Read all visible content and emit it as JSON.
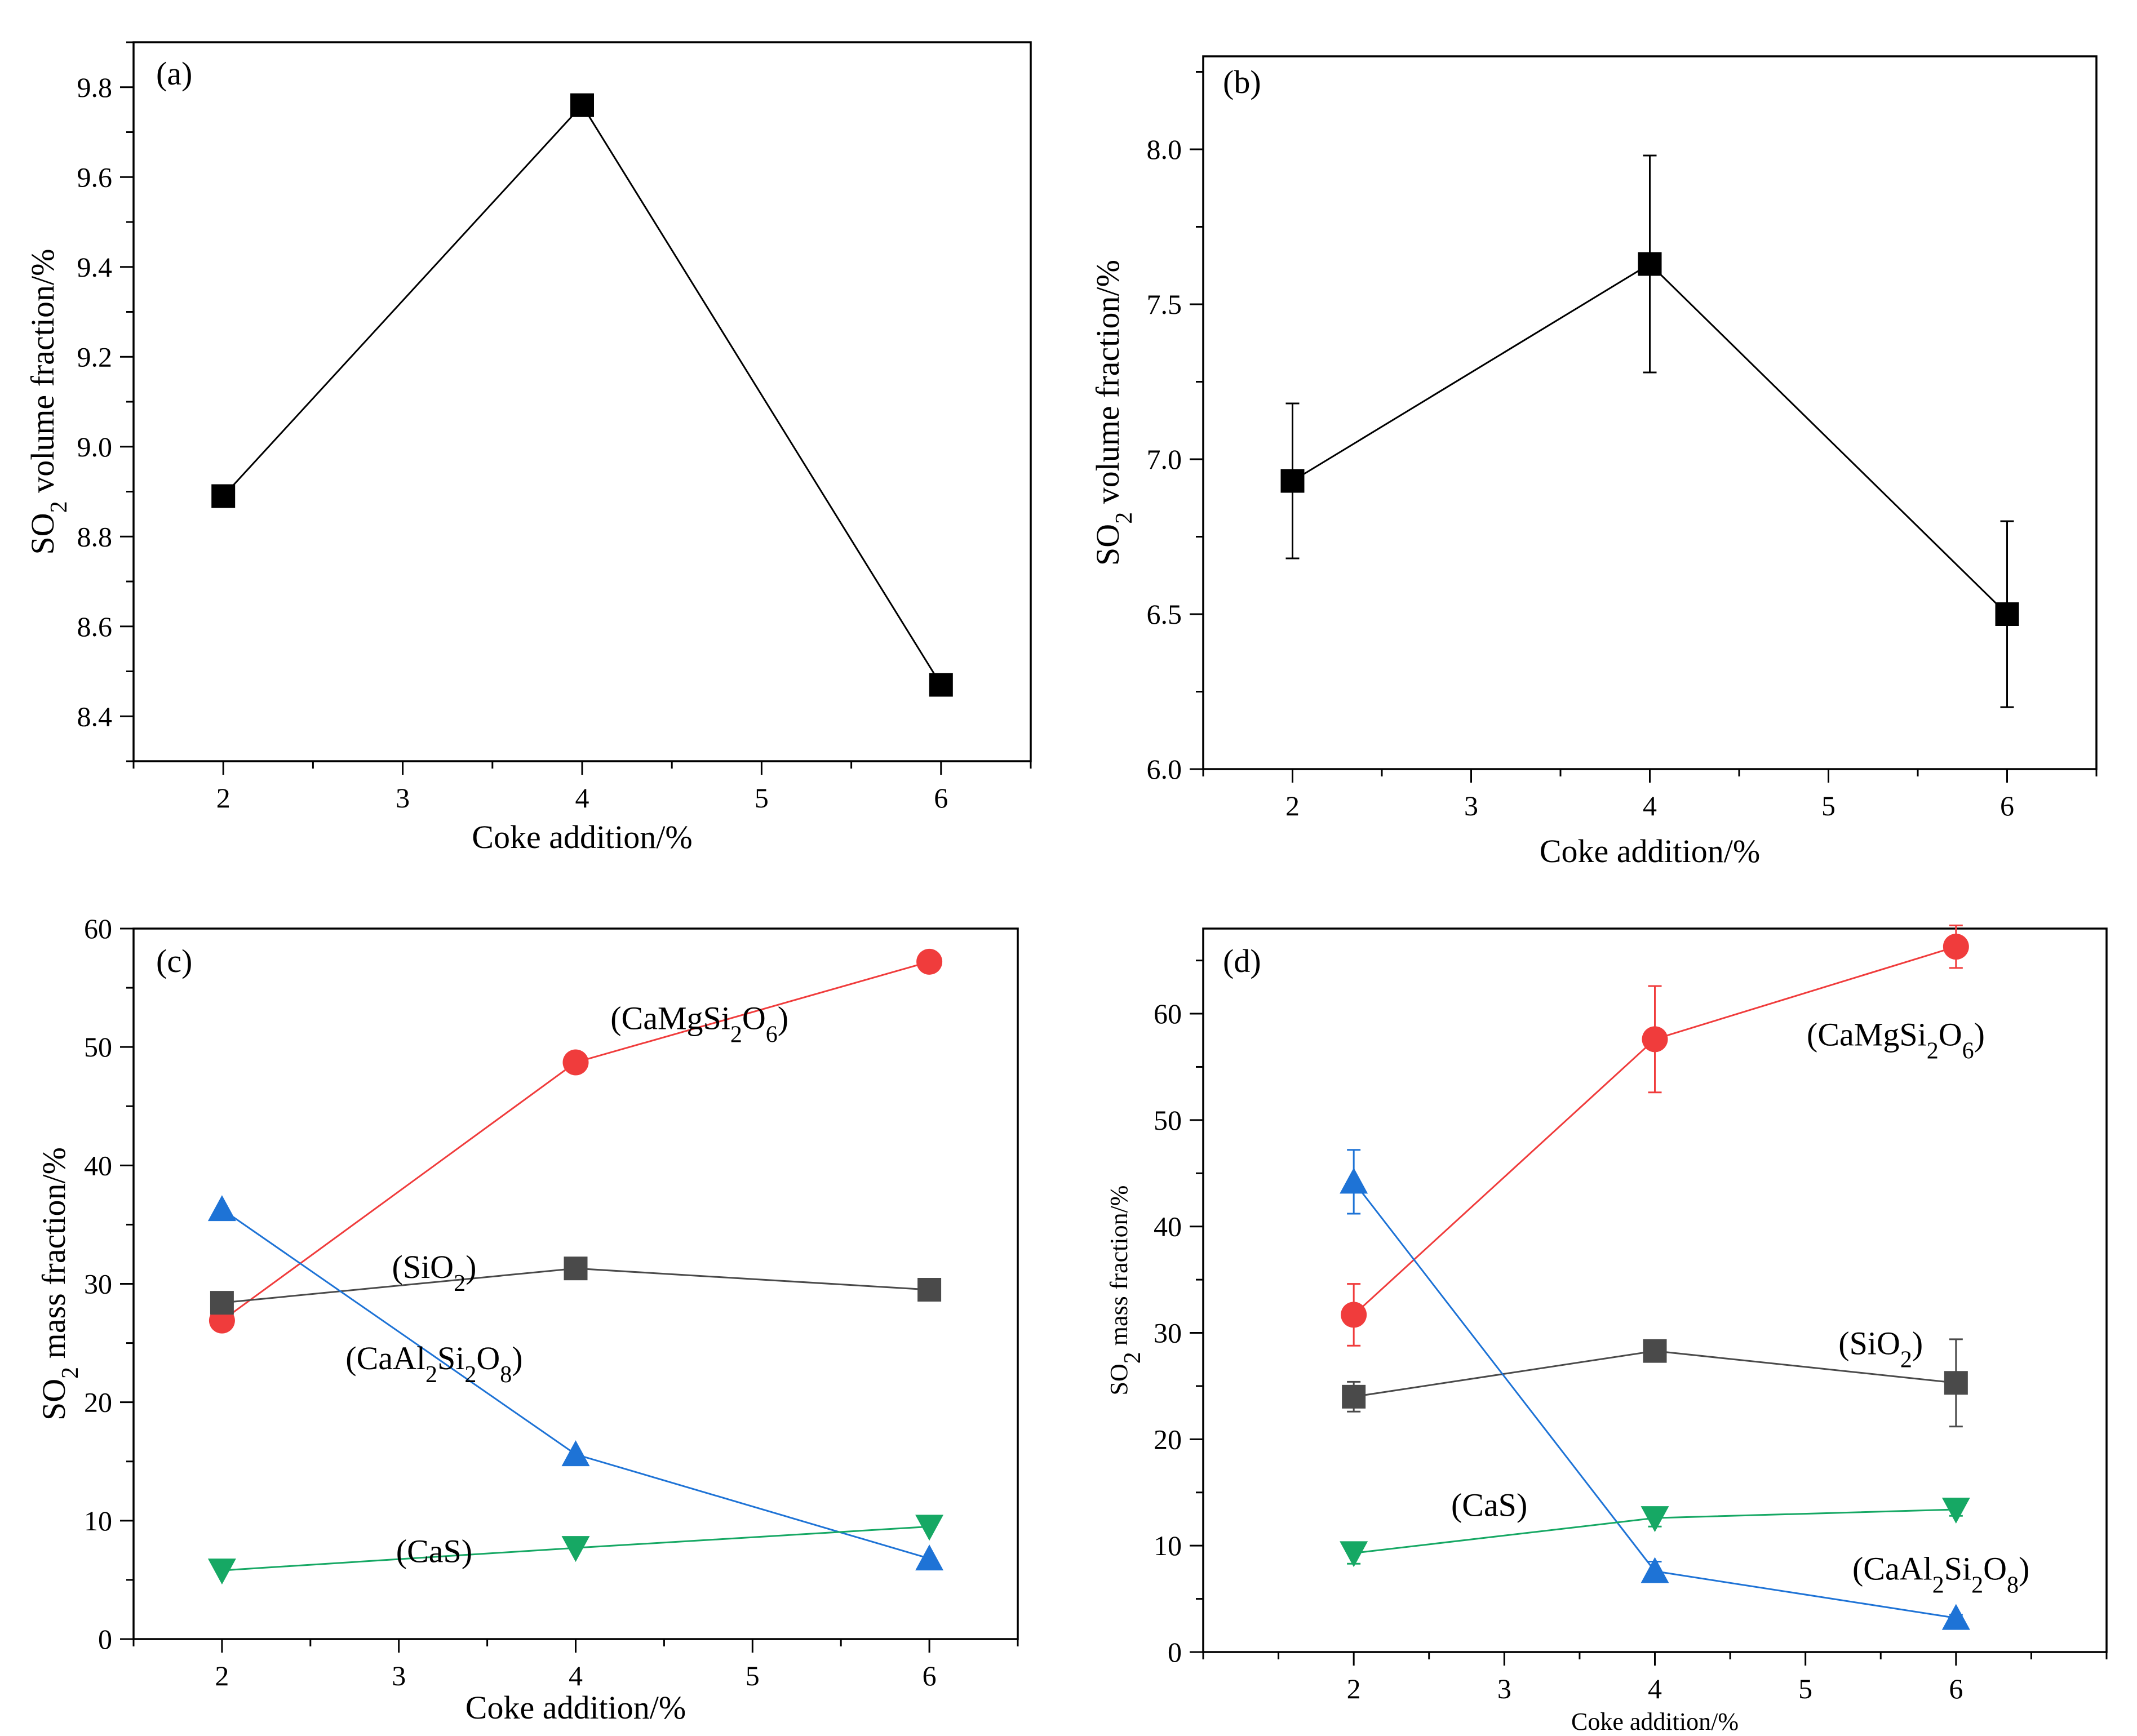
{
  "chart_data": [
    {
      "id": "a",
      "type": "line",
      "panel_label": "(a)",
      "xlabel": "Coke addition/%",
      "ylabel": "SO",
      "ylabel_sub": "2",
      "ylabel_rest": " volume fraction/%",
      "xlim": [
        1.5,
        6.5
      ],
      "ylim": [
        8.3,
        9.9
      ],
      "xticks": [
        2,
        3,
        4,
        5,
        6
      ],
      "yticks": [
        8.4,
        8.6,
        8.8,
        9.0,
        9.2,
        9.4,
        9.6,
        9.8
      ],
      "ytick_decimals": 1,
      "grid": false,
      "series": [
        {
          "name": "SO2",
          "color": "#000000",
          "marker": "square",
          "x": [
            2,
            4,
            6
          ],
          "y": [
            8.89,
            9.76,
            8.47
          ]
        }
      ],
      "annotations": []
    },
    {
      "id": "b",
      "type": "line",
      "panel_label": "(b)",
      "xlabel": "Coke addition/%",
      "ylabel": "SO",
      "ylabel_sub": "2",
      "ylabel_rest": " volume fraction/%",
      "xlim": [
        1.5,
        6.5
      ],
      "ylim": [
        6.0,
        8.3
      ],
      "xticks": [
        2,
        3,
        4,
        5,
        6
      ],
      "yticks": [
        6.0,
        6.5,
        7.0,
        7.5,
        8.0
      ],
      "ytick_decimals": 1,
      "grid": false,
      "series": [
        {
          "name": "SO2",
          "color": "#000000",
          "marker": "square",
          "x": [
            2,
            4,
            6
          ],
          "y": [
            6.93,
            7.63,
            6.5
          ],
          "yerr": [
            0.25,
            0.35,
            0.3
          ]
        }
      ],
      "annotations": []
    },
    {
      "id": "c",
      "type": "line",
      "panel_label": "(c)",
      "xlabel": "Coke addition/%",
      "ylabel": "SO",
      "ylabel_sub": "2",
      "ylabel_rest": " mass fraction/%",
      "xlim": [
        1.5,
        6.5
      ],
      "ylim": [
        0,
        60
      ],
      "xticks": [
        2,
        3,
        4,
        5,
        6
      ],
      "yticks": [
        0,
        10,
        20,
        30,
        40,
        50,
        60
      ],
      "ytick_decimals": 0,
      "grid": false,
      "series": [
        {
          "name": "CaMgSi2O6",
          "color": "#f03c3c",
          "marker": "circle",
          "x": [
            2,
            4,
            6
          ],
          "y": [
            26.9,
            48.7,
            57.2
          ]
        },
        {
          "name": "SiO2",
          "color": "#4a4a4a",
          "marker": "square",
          "x": [
            2,
            4,
            6
          ],
          "y": [
            28.4,
            31.3,
            29.5
          ]
        },
        {
          "name": "CaAl2Si2O8",
          "color": "#1e73d6",
          "marker": "triangle-up",
          "x": [
            2,
            4,
            6
          ],
          "y": [
            36.3,
            15.6,
            6.8
          ]
        },
        {
          "name": "CaS",
          "color": "#16a864",
          "marker": "triangle-down",
          "x": [
            2,
            4,
            6
          ],
          "y": [
            5.8,
            7.7,
            9.5
          ]
        }
      ],
      "annotations": [
        {
          "parts": [
            "(CaMgSi",
            "2",
            "O",
            "6",
            ")"
          ],
          "x": 4.7,
          "y": 51.5
        },
        {
          "parts": [
            "(SiO",
            "2",
            ")"
          ],
          "x": 3.2,
          "y": 30.5
        },
        {
          "parts": [
            "(CaAl",
            "2",
            "Si",
            "2",
            "O",
            "8",
            ")"
          ],
          "x": 3.2,
          "y": 22.8
        },
        {
          "parts": [
            "(CaS)"
          ],
          "x": 3.2,
          "y": 6.5
        }
      ]
    },
    {
      "id": "d",
      "type": "line",
      "panel_label": "(d)",
      "xlabel": "Coke addition/%",
      "ylabel": "SO",
      "ylabel_sub": "2",
      "ylabel_rest": " mass fraction/%",
      "xlim": [
        1.0,
        7.0
      ],
      "ylim": [
        0,
        68
      ],
      "xticks": [
        2,
        3,
        4,
        5,
        6
      ],
      "yticks": [
        0,
        10,
        20,
        30,
        40,
        50,
        60
      ],
      "ytick_decimals": 0,
      "grid": false,
      "series": [
        {
          "name": "CaMgSi2O6",
          "color": "#f03c3c",
          "marker": "circle",
          "x": [
            2,
            4,
            6
          ],
          "y": [
            31.7,
            57.6,
            66.3
          ],
          "yerr": [
            2.9,
            5.0,
            2.0
          ]
        },
        {
          "name": "SiO2",
          "color": "#4a4a4a",
          "marker": "square",
          "x": [
            2,
            4,
            6
          ],
          "y": [
            24.0,
            28.3,
            25.3
          ],
          "yerr": [
            1.4,
            0.9,
            4.1
          ]
        },
        {
          "name": "CaAl2Si2O8",
          "color": "#1e73d6",
          "marker": "triangle-up",
          "x": [
            2,
            4,
            6
          ],
          "y": [
            44.2,
            7.6,
            3.2
          ],
          "yerr": [
            3.0,
            0.9,
            0.3
          ]
        },
        {
          "name": "CaS",
          "color": "#16a864",
          "marker": "triangle-down",
          "x": [
            2,
            4,
            6
          ],
          "y": [
            9.3,
            12.6,
            13.4
          ],
          "yerr": [
            1.0,
            0.8,
            0.6
          ]
        }
      ],
      "annotations": [
        {
          "parts": [
            "(CaMgSi",
            "2",
            "O",
            "6",
            ")"
          ],
          "x": 5.6,
          "y": 57.0
        },
        {
          "parts": [
            "(SiO",
            "2",
            ")"
          ],
          "x": 5.5,
          "y": 28.0
        },
        {
          "parts": [
            "(CaS)"
          ],
          "x": 2.9,
          "y": 12.8
        },
        {
          "parts": [
            "(CaAl",
            "2",
            "Si",
            "2",
            "O",
            "8",
            ")"
          ],
          "x": 5.9,
          "y": 6.8
        }
      ]
    }
  ]
}
